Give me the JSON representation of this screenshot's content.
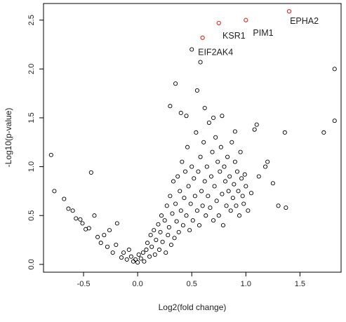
{
  "chart_data": {
    "type": "scatter",
    "xlabel": "Log2(fold change)",
    "ylabel": "-Log10(p-value)",
    "xlim": [
      -0.87,
      1.88
    ],
    "ylim": [
      -0.08,
      2.67
    ],
    "xticks": [
      -0.5,
      0.0,
      0.5,
      1.0,
      1.5
    ],
    "xtick_labels": [
      "-0.5",
      "0.0",
      "0.5",
      "1.0",
      "1.5"
    ],
    "yticks": [
      0.0,
      0.5,
      1.0,
      1.5,
      2.0,
      2.5
    ],
    "ytick_labels": [
      "0.0",
      "0.5",
      "1.0",
      "1.5",
      "2.0",
      "2.5"
    ],
    "grid": false,
    "colors": {
      "default": "#000000",
      "highlight": "#d62728"
    },
    "highlighted": [
      {
        "name": "EPHA2",
        "x": 1.4,
        "y": 2.59
      },
      {
        "name": "PIM1",
        "x": 1.0,
        "y": 2.5
      },
      {
        "name": "KSR1",
        "x": 0.75,
        "y": 2.47
      },
      {
        "name": "EIF2AK4",
        "x": 0.6,
        "y": 2.32
      }
    ],
    "labels": [
      {
        "text": "EPHA2",
        "x": 1.54,
        "y": 2.49
      },
      {
        "text": "PIM1",
        "x": 1.16,
        "y": 2.37
      },
      {
        "text": "KSR1",
        "x": 0.89,
        "y": 2.34
      },
      {
        "text": "EIF2AK4",
        "x": 0.72,
        "y": 2.17
      }
    ],
    "points": [
      [
        -0.8,
        1.12
      ],
      [
        -0.77,
        0.75
      ],
      [
        -0.68,
        0.67
      ],
      [
        -0.64,
        0.57
      ],
      [
        -0.6,
        0.55
      ],
      [
        -0.57,
        0.47
      ],
      [
        -0.53,
        0.46
      ],
      [
        -0.51,
        0.42
      ],
      [
        -0.48,
        0.36
      ],
      [
        -0.45,
        0.37
      ],
      [
        -0.43,
        0.94
      ],
      [
        -0.4,
        0.5
      ],
      [
        -0.37,
        0.28
      ],
      [
        -0.34,
        0.22
      ],
      [
        -0.31,
        0.3
      ],
      [
        -0.28,
        0.18
      ],
      [
        -0.26,
        0.35
      ],
      [
        -0.23,
        0.12
      ],
      [
        -0.2,
        0.2
      ],
      [
        -0.19,
        0.42
      ],
      [
        -0.15,
        0.07
      ],
      [
        -0.13,
        0.12
      ],
      [
        -0.1,
        0.05
      ],
      [
        -0.08,
        0.15
      ],
      [
        -0.06,
        0.08
      ],
      [
        -0.04,
        0.03
      ],
      [
        -0.02,
        0.05
      ],
      [
        0.0,
        0.02
      ],
      [
        0.01,
        0.1
      ],
      [
        0.03,
        0.06
      ],
      [
        0.05,
        0.12
      ],
      [
        0.06,
        0.03
      ],
      [
        0.08,
        0.15
      ],
      [
        0.09,
        0.22
      ],
      [
        0.11,
        0.08
      ],
      [
        0.12,
        0.3
      ],
      [
        0.13,
        0.18
      ],
      [
        0.15,
        0.35
      ],
      [
        0.16,
        0.1
      ],
      [
        0.17,
        0.25
      ],
      [
        0.19,
        0.41
      ],
      [
        0.2,
        0.15
      ],
      [
        0.21,
        0.33
      ],
      [
        0.22,
        0.5
      ],
      [
        0.23,
        0.23
      ],
      [
        0.25,
        0.45
      ],
      [
        0.26,
        0.12
      ],
      [
        0.27,
        0.6
      ],
      [
        0.28,
        0.3
      ],
      [
        0.29,
        0.38
      ],
      [
        0.3,
        0.7
      ],
      [
        0.31,
        0.2
      ],
      [
        0.32,
        0.52
      ],
      [
        0.33,
        0.85
      ],
      [
        0.34,
        0.27
      ],
      [
        0.35,
        0.62
      ],
      [
        0.36,
        0.44
      ],
      [
        0.37,
        0.9
      ],
      [
        0.38,
        0.33
      ],
      [
        0.39,
        0.75
      ],
      [
        0.4,
        0.55
      ],
      [
        0.41,
        1.05
      ],
      [
        0.42,
        0.4
      ],
      [
        0.43,
        0.68
      ],
      [
        0.44,
        0.95
      ],
      [
        0.45,
        0.5
      ],
      [
        0.46,
        1.2
      ],
      [
        0.47,
        0.8
      ],
      [
        0.48,
        0.35
      ],
      [
        0.49,
        0.62
      ],
      [
        0.5,
        1.0
      ],
      [
        0.51,
        0.45
      ],
      [
        0.52,
        0.88
      ],
      [
        0.53,
        0.7
      ],
      [
        0.54,
        1.35
      ],
      [
        0.55,
        0.55
      ],
      [
        0.56,
        0.95
      ],
      [
        0.57,
        0.4
      ],
      [
        0.58,
        1.1
      ],
      [
        0.59,
        0.75
      ],
      [
        0.6,
        0.6
      ],
      [
        0.61,
        1.25
      ],
      [
        0.62,
        0.85
      ],
      [
        0.63,
        0.5
      ],
      [
        0.64,
        1.0
      ],
      [
        0.65,
        0.7
      ],
      [
        0.66,
        1.45
      ],
      [
        0.67,
        0.58
      ],
      [
        0.68,
        0.9
      ],
      [
        0.69,
        1.15
      ],
      [
        0.7,
        0.45
      ],
      [
        0.71,
        0.8
      ],
      [
        0.72,
        1.3
      ],
      [
        0.73,
        0.65
      ],
      [
        0.74,
        1.05
      ],
      [
        0.75,
        0.5
      ],
      [
        0.76,
        0.95
      ],
      [
        0.77,
        1.2
      ],
      [
        0.78,
        0.72
      ],
      [
        0.79,
        0.4
      ],
      [
        0.8,
        1.0
      ],
      [
        0.81,
        0.85
      ],
      [
        0.82,
        0.6
      ],
      [
        0.83,
        1.1
      ],
      [
        0.84,
        0.75
      ],
      [
        0.85,
        0.9
      ],
      [
        0.86,
        0.55
      ],
      [
        0.87,
        1.25
      ],
      [
        0.88,
        0.68
      ],
      [
        0.89,
        0.82
      ],
      [
        0.9,
        1.05
      ],
      [
        0.91,
        0.6
      ],
      [
        0.92,
        0.95
      ],
      [
        0.93,
        0.75
      ],
      [
        0.94,
        0.5
      ],
      [
        0.95,
        1.15
      ],
      [
        0.96,
        0.88
      ],
      [
        0.97,
        0.7
      ],
      [
        0.98,
        0.62
      ],
      [
        0.99,
        0.92
      ],
      [
        1.0,
        0.8
      ],
      [
        1.02,
        0.55
      ],
      [
        1.05,
        0.73
      ],
      [
        1.08,
        1.38
      ],
      [
        1.12,
        0.9
      ],
      [
        1.18,
        1.0
      ],
      [
        1.25,
        0.83
      ],
      [
        1.3,
        0.6
      ],
      [
        1.36,
        1.35
      ],
      [
        1.37,
        0.58
      ],
      [
        1.72,
        1.35
      ],
      [
        1.82,
        2.0
      ],
      [
        1.82,
        1.47
      ],
      [
        1.2,
        1.05
      ],
      [
        0.3,
        1.62
      ],
      [
        0.35,
        1.85
      ],
      [
        0.4,
        1.55
      ],
      [
        0.45,
        1.52
      ],
      [
        0.5,
        2.2
      ],
      [
        0.58,
        2.07
      ],
      [
        0.55,
        1.78
      ],
      [
        0.62,
        1.6
      ],
      [
        0.7,
        1.5
      ],
      [
        0.78,
        1.52
      ],
      [
        0.9,
        1.36
      ],
      [
        1.1,
        1.43
      ]
    ]
  }
}
